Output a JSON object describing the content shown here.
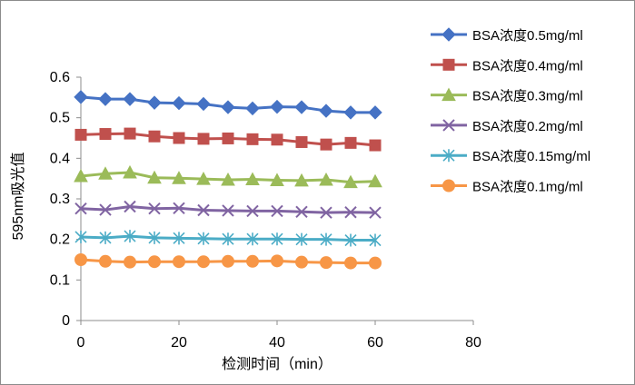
{
  "chart_data": {
    "type": "line",
    "xlabel": "检测时间（min）",
    "ylabel": "595nm吸光值",
    "xlim": [
      0,
      80
    ],
    "ylim": [
      0,
      0.6
    ],
    "xticks": [
      0,
      20,
      40,
      60,
      80
    ],
    "yticks": [
      0,
      0.1,
      0.2,
      0.3,
      0.4,
      0.5,
      0.6
    ],
    "x": [
      0,
      5,
      10,
      15,
      20,
      25,
      30,
      35,
      40,
      45,
      50,
      55,
      60
    ],
    "grid": false,
    "legend": "right",
    "series": [
      {
        "name": "BSA浓度0.5mg/ml",
        "color": "#4572c4",
        "marker": "diamond",
        "values": [
          0.551,
          0.546,
          0.546,
          0.537,
          0.536,
          0.534,
          0.526,
          0.523,
          0.527,
          0.526,
          0.517,
          0.513,
          0.513
        ]
      },
      {
        "name": "BSA浓度0.4mg/ml",
        "color": "#c0504d",
        "marker": "square",
        "values": [
          0.458,
          0.46,
          0.461,
          0.454,
          0.45,
          0.448,
          0.449,
          0.447,
          0.446,
          0.44,
          0.434,
          0.438,
          0.432
        ]
      },
      {
        "name": "BSA浓度0.3mg/ml",
        "color": "#9bbb59",
        "marker": "triangle",
        "values": [
          0.356,
          0.362,
          0.365,
          0.352,
          0.351,
          0.349,
          0.347,
          0.348,
          0.346,
          0.345,
          0.347,
          0.341,
          0.343
        ]
      },
      {
        "name": "BSA浓度0.2mg/ml",
        "color": "#8064a2",
        "marker": "x",
        "values": [
          0.276,
          0.273,
          0.281,
          0.276,
          0.277,
          0.272,
          0.271,
          0.27,
          0.27,
          0.268,
          0.266,
          0.267,
          0.266
        ]
      },
      {
        "name": "BSA浓度0.15mg/ml",
        "color": "#4bacc6",
        "marker": "star",
        "values": [
          0.206,
          0.204,
          0.208,
          0.204,
          0.203,
          0.202,
          0.201,
          0.201,
          0.201,
          0.2,
          0.2,
          0.198,
          0.198
        ]
      },
      {
        "name": "BSA浓度0.1mg/ml",
        "color": "#f79646",
        "marker": "circle",
        "values": [
          0.15,
          0.146,
          0.144,
          0.145,
          0.145,
          0.145,
          0.146,
          0.146,
          0.147,
          0.144,
          0.143,
          0.142,
          0.142
        ]
      }
    ]
  }
}
